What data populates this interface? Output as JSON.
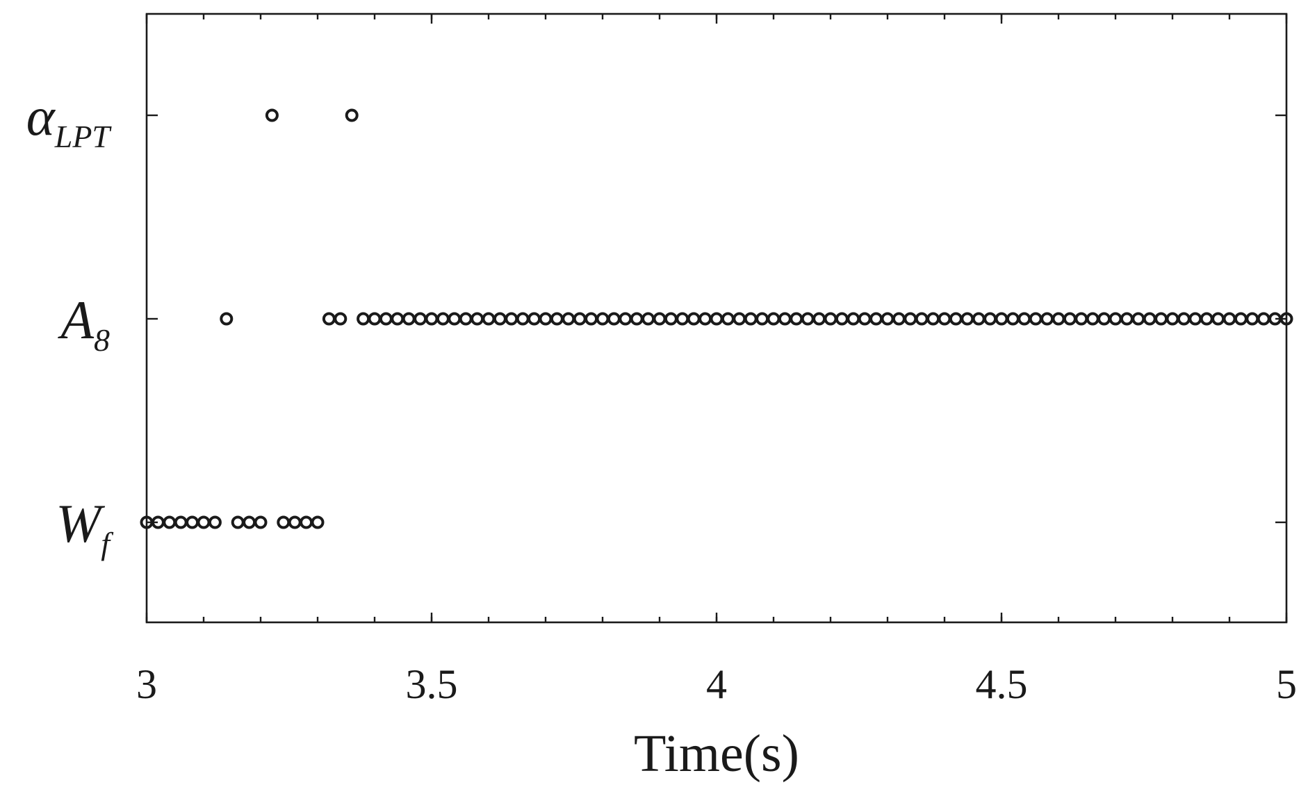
{
  "chart_data": {
    "type": "scatter",
    "title": "",
    "xlabel": "Time(s)",
    "ylabel": "",
    "xlim": [
      3,
      5
    ],
    "xticks": [
      "3",
      "3.5",
      "4",
      "4.5",
      "5"
    ],
    "xtick_values": [
      3,
      3.5,
      4,
      4.5,
      5
    ],
    "categories": [
      {
        "main": "W",
        "sub": "f"
      },
      {
        "main": "A",
        "sub": "8"
      },
      {
        "main": "α",
        "sub": "LPT"
      }
    ],
    "marker": "open-circle",
    "marker_color": "#1a1a1a",
    "grid": false,
    "series": [
      {
        "category_index": 2,
        "x": [
          3.22,
          3.36
        ]
      },
      {
        "category_index": 1,
        "x": [
          3.14,
          3.32,
          3.34,
          3.38,
          3.4,
          3.42,
          3.44,
          3.46,
          3.48,
          3.5,
          3.52,
          3.54,
          3.56,
          3.58,
          3.6,
          3.62,
          3.64,
          3.66,
          3.68,
          3.7,
          3.72,
          3.74,
          3.76,
          3.78,
          3.8,
          3.82,
          3.84,
          3.86,
          3.88,
          3.9,
          3.92,
          3.94,
          3.96,
          3.98,
          4.0,
          4.02,
          4.04,
          4.06,
          4.08,
          4.1,
          4.12,
          4.14,
          4.16,
          4.18,
          4.2,
          4.22,
          4.24,
          4.26,
          4.28,
          4.3,
          4.32,
          4.34,
          4.36,
          4.38,
          4.4,
          4.42,
          4.44,
          4.46,
          4.48,
          4.5,
          4.52,
          4.54,
          4.56,
          4.58,
          4.6,
          4.62,
          4.64,
          4.66,
          4.68,
          4.7,
          4.72,
          4.74,
          4.76,
          4.78,
          4.8,
          4.82,
          4.84,
          4.86,
          4.88,
          4.9,
          4.92,
          4.94,
          4.96,
          4.98,
          5.0
        ]
      },
      {
        "category_index": 0,
        "x": [
          3.0,
          3.02,
          3.04,
          3.06,
          3.08,
          3.1,
          3.12,
          3.16,
          3.18,
          3.2,
          3.24,
          3.26,
          3.28,
          3.3
        ]
      }
    ]
  }
}
